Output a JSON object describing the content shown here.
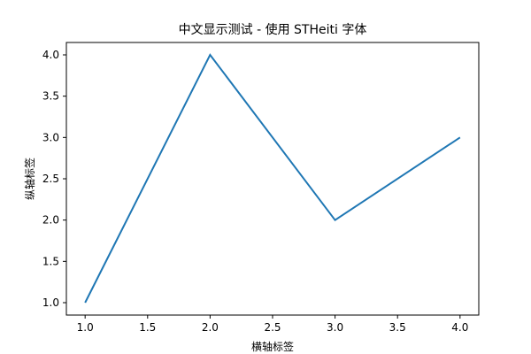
{
  "chart_data": {
    "type": "line",
    "title": "中文显示测试 - 使用 STHeiti 字体",
    "xlabel": "横轴标签",
    "ylabel": "纵轴标签",
    "x": [
      1,
      2,
      3,
      4
    ],
    "series": [
      {
        "values": [
          1,
          4,
          2,
          3
        ],
        "color": "#1f77b4"
      }
    ],
    "xlim": [
      0.85,
      4.15
    ],
    "ylim": [
      0.85,
      4.15
    ],
    "xticks": [
      1.0,
      1.5,
      2.0,
      2.5,
      3.0,
      3.5,
      4.0
    ],
    "yticks": [
      1.0,
      1.5,
      2.0,
      2.5,
      3.0,
      3.5,
      4.0
    ],
    "xtick_labels": [
      "1.0",
      "1.5",
      "2.0",
      "2.5",
      "3.0",
      "3.5",
      "4.0"
    ],
    "ytick_labels": [
      "1.0",
      "1.5",
      "2.0",
      "2.5",
      "3.0",
      "3.5",
      "4.0"
    ],
    "grid": false,
    "legend": false
  }
}
